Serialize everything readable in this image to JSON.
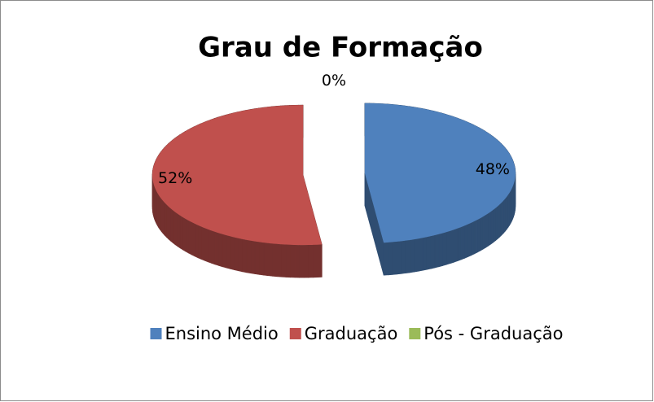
{
  "chart_data": {
    "type": "pie3d",
    "title": "Grau de Formação",
    "categories": [
      "Ensino Médio",
      "Graduação",
      "Pós - Graduação"
    ],
    "values": [
      48,
      52,
      0
    ],
    "value_labels": [
      "48%",
      "52%",
      "0%"
    ],
    "colors": [
      "#4f81bd",
      "#c0504d",
      "#9bbb59"
    ],
    "legend": "bottom"
  }
}
